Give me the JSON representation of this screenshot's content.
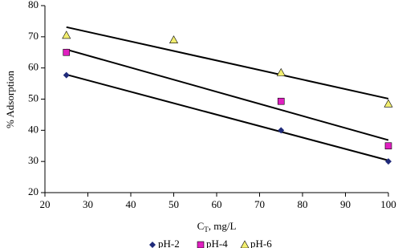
{
  "chart_data": {
    "type": "scatter",
    "x_label": [
      "C",
      "T",
      ", mg/L"
    ],
    "y_label": "% Adsorption",
    "xlim": [
      20,
      100
    ],
    "xticks": [
      20,
      30,
      40,
      50,
      60,
      70,
      80,
      90,
      100
    ],
    "ylim": [
      20,
      80
    ],
    "yticks": [
      20,
      30,
      40,
      50,
      60,
      70,
      80
    ],
    "trendline": "linear",
    "series": [
      {
        "name": "pH-2",
        "color": "#1f2a7a",
        "marker": "diamond",
        "x": [
          25,
          75,
          100
        ],
        "values": [
          57.7,
          40,
          30
        ]
      },
      {
        "name": "pH-4",
        "color": "#e020c0",
        "marker": "square",
        "x": [
          25,
          75,
          100
        ],
        "values": [
          65,
          49.3,
          35
        ]
      },
      {
        "name": "pH-6",
        "color": "#f2ee70",
        "marker": "triangle",
        "x": [
          25,
          50,
          75,
          100
        ],
        "values": [
          70.5,
          69,
          58.5,
          48.5
        ]
      }
    ]
  }
}
